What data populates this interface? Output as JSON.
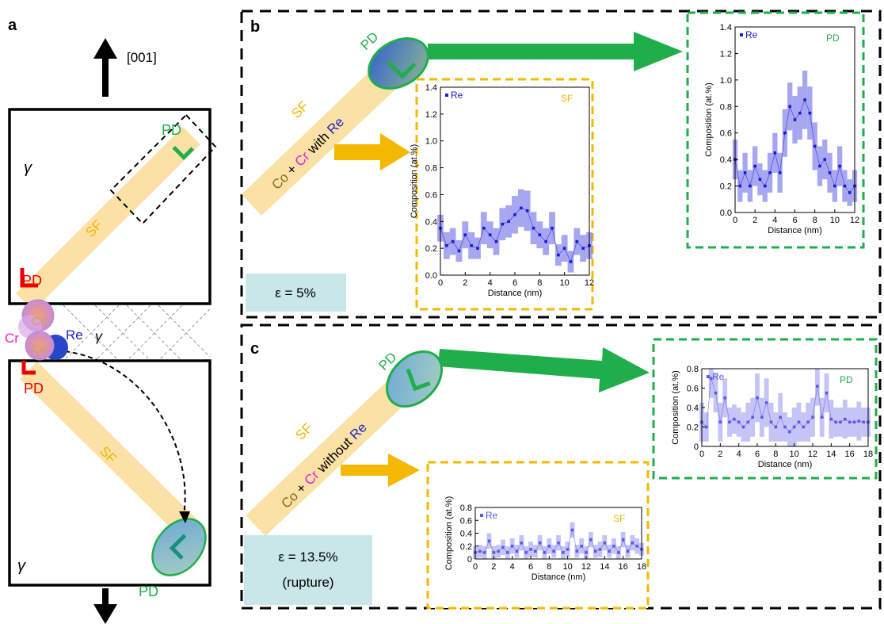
{
  "panel_labels": [
    "a",
    "b",
    "c"
  ],
  "panel_a": {
    "direction": "[001]",
    "phase_labels": [
      "γ",
      "γ",
      "γ"
    ],
    "pd_labels": [
      "PD",
      "PD",
      "PD",
      "PD"
    ],
    "sf_labels": [
      "SF",
      "SF"
    ],
    "atoms": {
      "cr": "Cr",
      "re": "Re",
      "co": [
        "Co",
        "Co"
      ]
    }
  },
  "panel_b": {
    "pd": "PD",
    "sf": "SF",
    "composition": [
      "Co",
      "+",
      "Cr",
      "with",
      "Re"
    ],
    "strain": "ε = 5%"
  },
  "panel_c": {
    "pd": "PD",
    "sf": "SF",
    "composition": [
      "Co",
      "+",
      "Cr",
      "without",
      "Re"
    ],
    "strain": "ε = 13.5%",
    "strain_note": "(rupture)"
  },
  "chart_data": [
    {
      "type": "scatter",
      "annotation": "SF",
      "xlabel": "Distance (nm)",
      "ylabel": "Composition (at.%)",
      "x": [
        0,
        0.5,
        1,
        1.5,
        2,
        2.5,
        3,
        3.5,
        4,
        4.5,
        5,
        5.5,
        6,
        6.5,
        7,
        7.5,
        8,
        8.5,
        9,
        9.5,
        10,
        10.5,
        11,
        11.5,
        12
      ],
      "series": [
        {
          "name": "Re",
          "color": "#1a1ad4",
          "band_color": "#6a6ae8",
          "values": [
            0.35,
            0.22,
            0.25,
            0.18,
            0.3,
            0.22,
            0.2,
            0.35,
            0.3,
            0.25,
            0.38,
            0.4,
            0.45,
            0.5,
            0.48,
            0.35,
            0.3,
            0.25,
            0.35,
            0.15,
            0.2,
            0.1,
            0.25,
            0.2,
            0.22
          ],
          "errors": [
            0.1,
            0.1,
            0.1,
            0.08,
            0.1,
            0.1,
            0.08,
            0.12,
            0.1,
            0.1,
            0.12,
            0.12,
            0.14,
            0.14,
            0.15,
            0.12,
            0.1,
            0.1,
            0.12,
            0.08,
            0.1,
            0.08,
            0.1,
            0.1,
            0.1
          ]
        }
      ],
      "xlim": [
        0,
        12
      ],
      "xticks": [
        0,
        2,
        4,
        6,
        8,
        10,
        12
      ],
      "ylim": [
        0,
        1.4
      ],
      "yticks": [
        {
          "value": 0,
          "label": "0.0"
        },
        0.2,
        0.4,
        0.6,
        0.8,
        {
          "value": 1,
          "label": "1.0"
        },
        1.2,
        1.4
      ]
    },
    {
      "type": "scatter",
      "annotation": "PD",
      "xlabel": "Distance (nm)",
      "ylabel": "Composition (at.%)",
      "x": [
        0,
        0.5,
        1,
        1.5,
        2,
        2.5,
        3,
        3.5,
        4,
        4.5,
        5,
        5.5,
        6,
        6.5,
        7,
        7.5,
        8,
        8.5,
        9,
        9.5,
        10,
        10.5,
        11,
        11.5,
        12
      ],
      "series": [
        {
          "name": "Re",
          "color": "#1a1ad4",
          "band_color": "#6a6ae8",
          "values": [
            0.4,
            0.2,
            0.3,
            0.2,
            0.35,
            0.25,
            0.2,
            0.3,
            0.45,
            0.3,
            0.6,
            0.8,
            0.7,
            0.75,
            0.85,
            0.75,
            0.5,
            0.35,
            0.4,
            0.3,
            0.2,
            0.35,
            0.2,
            0.15,
            0.2
          ],
          "errors": [
            0.15,
            0.12,
            0.15,
            0.12,
            0.15,
            0.12,
            0.12,
            0.15,
            0.15,
            0.15,
            0.18,
            0.18,
            0.18,
            0.2,
            0.22,
            0.2,
            0.18,
            0.15,
            0.15,
            0.15,
            0.12,
            0.15,
            0.12,
            0.1,
            0.12
          ]
        }
      ],
      "xlim": [
        0,
        12
      ],
      "xticks": [
        0,
        2,
        4,
        6,
        8,
        10,
        12
      ],
      "ylim": [
        0,
        1.4
      ],
      "yticks": [
        {
          "value": 0,
          "label": "0.0"
        },
        0.2,
        0.4,
        0.6,
        0.8,
        {
          "value": 1,
          "label": "1.0"
        },
        1.2,
        1.4
      ]
    },
    {
      "type": "scatter",
      "annotation": "PD",
      "xlabel": "Distance (nm)",
      "ylabel": "Composition (at.%)",
      "x": [
        0,
        0.5,
        1,
        1.5,
        2,
        2.5,
        3,
        3.5,
        4,
        4.5,
        5,
        5.5,
        6,
        6.5,
        7,
        7.5,
        8,
        8.5,
        9,
        9.5,
        10,
        10.5,
        11,
        11.5,
        12,
        12.5,
        13,
        13.5,
        14,
        14.5,
        15,
        15.5,
        16,
        16.5,
        17,
        17.5,
        18
      ],
      "series": [
        {
          "name": "Re",
          "color": "#5a5ae6",
          "band_color": "#9c9cf0",
          "values": [
            0.25,
            0.2,
            0.7,
            0.55,
            0.25,
            0.5,
            0.25,
            0.28,
            0.25,
            0.2,
            0.25,
            0.3,
            0.5,
            0.3,
            0.45,
            0.25,
            0.2,
            0.3,
            0.2,
            0.15,
            0.2,
            0.25,
            0.2,
            0.25,
            0.3,
            0.62,
            0.3,
            0.55,
            0.28,
            0.25,
            0.25,
            0.28,
            0.25,
            0.25,
            0.26,
            0.25,
            0.25
          ],
          "errors": [
            0.2,
            0.15,
            0.2,
            0.2,
            0.2,
            0.2,
            0.15,
            0.15,
            0.15,
            0.15,
            0.2,
            0.2,
            0.25,
            0.2,
            0.25,
            0.2,
            0.15,
            0.25,
            0.15,
            0.15,
            0.2,
            0.2,
            0.15,
            0.2,
            0.2,
            0.2,
            0.2,
            0.2,
            0.2,
            0.15,
            0.15,
            0.2,
            0.15,
            0.15,
            0.2,
            0.15,
            0.15
          ]
        }
      ],
      "xlim": [
        0,
        18
      ],
      "xticks": [
        0,
        2,
        4,
        6,
        8,
        10,
        12,
        14,
        16,
        18
      ],
      "ylim": [
        0,
        0.8
      ],
      "yticks": [
        0,
        0.2,
        0.4,
        0.6,
        0.8
      ]
    },
    {
      "type": "scatter",
      "annotation": "SF",
      "xlabel": "Distance (nm)",
      "ylabel": "Composition (at.%)",
      "x": [
        0,
        0.5,
        1,
        1.5,
        2,
        2.5,
        3,
        3.5,
        4,
        4.5,
        5,
        5.5,
        6,
        6.5,
        7,
        7.5,
        8,
        8.5,
        9,
        9.5,
        10,
        10.5,
        11,
        11.5,
        12,
        12.5,
        13,
        13.5,
        14,
        14.5,
        15,
        15.5,
        16,
        16.5,
        17,
        17.5,
        18
      ],
      "series": [
        {
          "name": "Re",
          "color": "#5a5ae6",
          "band_color": "#9c9cf0",
          "values": [
            0.1,
            0.12,
            0.1,
            0.28,
            0.1,
            0.12,
            0.18,
            0.1,
            0.2,
            0.12,
            0.25,
            0.1,
            0.15,
            0.12,
            0.25,
            0.1,
            0.2,
            0.12,
            0.25,
            0.1,
            0.15,
            0.45,
            0.12,
            0.2,
            0.1,
            0.3,
            0.12,
            0.15,
            0.25,
            0.12,
            0.2,
            0.1,
            0.3,
            0.12,
            0.25,
            0.2,
            0.15
          ],
          "errors": [
            0.1,
            0.1,
            0.1,
            0.12,
            0.1,
            0.1,
            0.12,
            0.1,
            0.12,
            0.1,
            0.12,
            0.1,
            0.12,
            0.1,
            0.12,
            0.1,
            0.12,
            0.1,
            0.12,
            0.1,
            0.12,
            0.12,
            0.1,
            0.12,
            0.1,
            0.12,
            0.1,
            0.12,
            0.12,
            0.1,
            0.12,
            0.1,
            0.12,
            0.1,
            0.12,
            0.12,
            0.1
          ]
        }
      ],
      "xlim": [
        0,
        18
      ],
      "xticks": [
        0,
        2,
        4,
        6,
        8,
        10,
        12,
        14,
        16,
        18
      ],
      "ylim": [
        0,
        0.8
      ],
      "yticks": [
        0,
        0.2,
        0.4,
        0.6,
        0.8
      ]
    }
  ]
}
